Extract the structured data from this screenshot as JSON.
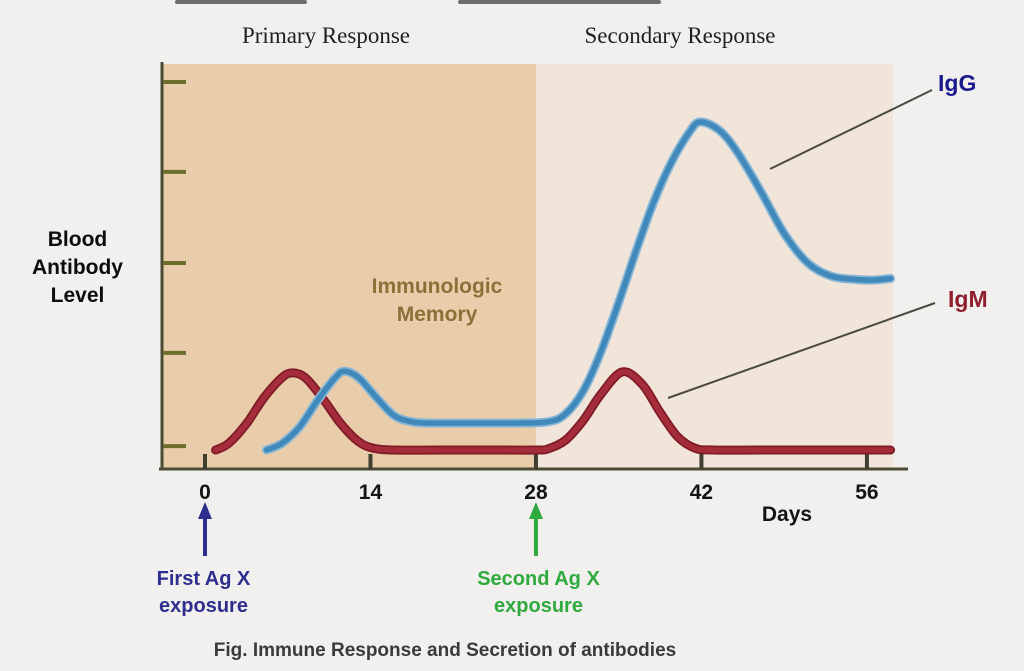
{
  "colors": {
    "background": "#f1f0ee",
    "region_primary": "#e9cdab",
    "region_secondary": "#f1e4d9",
    "axis": "#4a4a35",
    "x_tick": "#3f3f30",
    "y_tick": "#6e6e2c",
    "tick_label": "#141414",
    "leader_line": "#4a4a40",
    "igg_label": "#1a1a8f",
    "igm_label": "#8e1e2d",
    "memory_text": "#8a7138",
    "first_event": "#2e2e8f",
    "second_event": "#2faa3e",
    "caption_text": "#3a3a3a"
  },
  "chart_data": {
    "type": "line",
    "title": "Fig. Immune Response and Secretion of antibodies",
    "xlabel": "Days",
    "ylabel": "Blood\nAntibody\nLevel",
    "x_ticks": [
      0,
      14,
      28,
      42,
      56
    ],
    "x_range_days": [
      -3.7,
      58.2
    ],
    "y_axis": {
      "tick_levels": [
        1.2,
        29.6,
        57,
        84.8,
        112.2
      ],
      "numeric_labels_shown": false,
      "range": [
        0,
        118
      ]
    },
    "regions": [
      {
        "name": "Primary Response",
        "from_day": -3.7,
        "to_day": 28,
        "color_key": "region_primary"
      },
      {
        "name": "Secondary Response",
        "from_day": 28,
        "to_day": 58.2,
        "color_key": "region_secondary"
      }
    ],
    "memory_label": "Immunologic\nMemory",
    "series": [
      {
        "name": "IgM",
        "core": "#a52c3a",
        "edge": "#7f1b27",
        "points": [
          [
            0.9,
            0
          ],
          [
            2,
            2
          ],
          [
            3.5,
            8
          ],
          [
            5,
            16
          ],
          [
            6.5,
            22
          ],
          [
            7.4,
            23.5
          ],
          [
            8.5,
            22
          ],
          [
            10,
            15.5
          ],
          [
            11.5,
            8
          ],
          [
            13,
            2.5
          ],
          [
            14.3,
            0.5
          ],
          [
            16,
            0
          ],
          [
            20,
            0
          ],
          [
            24,
            0
          ],
          [
            28,
            0
          ],
          [
            29,
            0.3
          ],
          [
            30.5,
            3
          ],
          [
            32,
            9
          ],
          [
            33.5,
            17
          ],
          [
            35.3,
            23.8
          ],
          [
            37,
            20
          ],
          [
            38.5,
            11.5
          ],
          [
            40,
            4
          ],
          [
            41.5,
            0.5
          ],
          [
            43,
            0
          ],
          [
            47,
            0
          ],
          [
            52,
            0
          ],
          [
            58,
            0
          ]
        ]
      },
      {
        "name": "IgG",
        "core": "#4089ba",
        "edge": "#86b6d6",
        "points": [
          [
            5.2,
            0
          ],
          [
            6.5,
            2
          ],
          [
            8,
            7
          ],
          [
            9.5,
            15
          ],
          [
            11,
            22
          ],
          [
            11.8,
            24
          ],
          [
            13,
            22
          ],
          [
            14.5,
            16
          ],
          [
            16,
            10.5
          ],
          [
            17.5,
            8.6
          ],
          [
            19,
            8.2
          ],
          [
            22,
            8.2
          ],
          [
            26,
            8.2
          ],
          [
            29,
            8.6
          ],
          [
            30.5,
            11
          ],
          [
            32,
            18
          ],
          [
            33.5,
            30
          ],
          [
            35,
            45
          ],
          [
            36.5,
            61
          ],
          [
            38,
            76
          ],
          [
            39.5,
            88
          ],
          [
            41,
            97
          ],
          [
            41.9,
            100
          ],
          [
            43.5,
            97.5
          ],
          [
            45,
            91
          ],
          [
            47,
            79
          ],
          [
            49,
            66
          ],
          [
            51,
            57
          ],
          [
            53,
            53
          ],
          [
            55,
            52
          ],
          [
            56.5,
            51.8
          ],
          [
            58,
            52.3
          ]
        ]
      }
    ],
    "events": [
      {
        "label": "First Ag X\nexposure",
        "day": 0,
        "color": "#2e2e8f"
      },
      {
        "label": "Second Ag X\nexposure",
        "day": 28,
        "color": "#2faa3e"
      }
    ],
    "leader_lines": [
      {
        "series": "IgG",
        "from": [
          770,
          169
        ],
        "to": [
          932,
          90
        ]
      },
      {
        "series": "IgM",
        "from": [
          668,
          398
        ],
        "to": [
          935,
          303
        ]
      }
    ]
  }
}
